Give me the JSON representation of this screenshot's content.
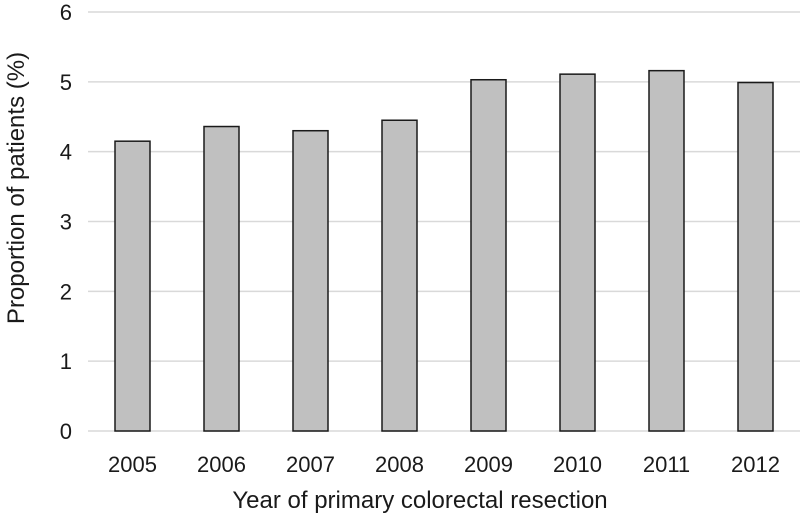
{
  "chart_data": {
    "type": "bar",
    "categories": [
      "2005",
      "2006",
      "2007",
      "2008",
      "2009",
      "2010",
      "2011",
      "2012"
    ],
    "values": [
      4.15,
      4.36,
      4.3,
      4.45,
      5.03,
      5.11,
      5.16,
      4.99
    ],
    "title": "",
    "xlabel": "Year of primary colorectal resection",
    "ylabel": "Proportion of patients (%)",
    "ylim": [
      0,
      6
    ],
    "yticks": [
      "0",
      "1",
      "2",
      "3",
      "4",
      "5",
      "6"
    ],
    "grid": true,
    "bar_color": "#c0c0c0",
    "bar_edge_color": "#1a1a1a"
  }
}
